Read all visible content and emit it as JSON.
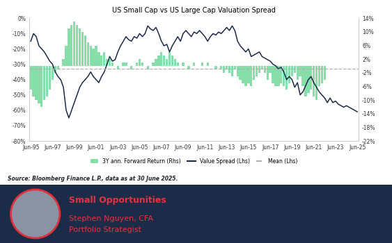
{
  "chart_data": {
    "type": "combo",
    "title": "US Small Cap vs US Large Cap Valuation Spread",
    "categories": [
      "Jun-95",
      null,
      null,
      null,
      null,
      null,
      null,
      null,
      "Jun-97",
      null,
      null,
      null,
      null,
      null,
      null,
      null,
      "Jun-99",
      null,
      null,
      null,
      null,
      null,
      null,
      null,
      "Jun-01",
      null,
      null,
      null,
      null,
      null,
      null,
      null,
      "Jun-03",
      null,
      null,
      null,
      null,
      null,
      null,
      null,
      "Jun-05",
      null,
      null,
      null,
      null,
      null,
      null,
      null,
      "Jun-07",
      null,
      null,
      null,
      null,
      null,
      null,
      null,
      "Jun-09",
      null,
      null,
      null,
      null,
      null,
      null,
      null,
      "Jun-11",
      null,
      null,
      null,
      null,
      null,
      null,
      null,
      "Jun-13",
      null,
      null,
      null,
      null,
      null,
      null,
      null,
      "Jun-15",
      null,
      null,
      null,
      null,
      null,
      null,
      null,
      "Jun-17",
      null,
      null,
      null,
      null,
      null,
      null,
      null,
      "Jun-19",
      null,
      null,
      null,
      null,
      null,
      null,
      null,
      "Jun-21",
      null,
      null,
      null,
      null,
      null,
      null,
      null,
      "Jun-23",
      null,
      null,
      null,
      null,
      null,
      null,
      null,
      "Jun-25"
    ],
    "series": [
      {
        "name": "3Y ann. Forward Return (Rhs)",
        "type": "bar",
        "axis": "y2",
        "color": "#86dfa9",
        "values": [
          -7,
          -9,
          -10,
          -11,
          -12,
          -10,
          -9,
          -7,
          -4,
          -2,
          -1,
          0,
          2,
          6,
          11,
          12,
          13,
          12,
          11,
          10,
          9,
          7,
          6,
          5,
          6,
          4,
          3,
          4,
          2,
          2,
          1,
          0,
          -1,
          0,
          1,
          1,
          0,
          -1,
          0,
          1,
          2,
          1,
          0,
          -1,
          0,
          1,
          2,
          3,
          4,
          3,
          2,
          4,
          3,
          2,
          1,
          0,
          1,
          0,
          -1,
          0,
          1,
          0,
          0,
          1,
          0,
          1,
          0,
          0,
          -1,
          0,
          -1,
          -2,
          -1,
          -2,
          -3,
          -1,
          -3,
          -4,
          -5,
          -6,
          -5,
          -6,
          -4,
          -3,
          -2,
          -1,
          -2,
          -4,
          -2,
          -5,
          -6,
          -6,
          -5,
          -6,
          -7,
          -5,
          -3,
          -2,
          -4,
          -3,
          -6,
          -9,
          -8,
          -7,
          -9,
          -10,
          -6,
          -5,
          -4,
          null,
          null,
          null,
          null,
          null,
          null,
          null,
          null,
          null,
          null,
          null,
          null
        ]
      },
      {
        "name": "Value Spread (Lhs)",
        "type": "line",
        "axis": "y",
        "color": "#1b2a4a",
        "line_style": "solid",
        "values": [
          -15,
          -10,
          -12,
          -18,
          -20,
          -22,
          -25,
          -28,
          -30,
          -35,
          -38,
          -40,
          -45,
          -60,
          -65,
          -60,
          -55,
          -50,
          -45,
          -42,
          -40,
          -38,
          -35,
          -38,
          -40,
          -42,
          -38,
          -35,
          -30,
          -25,
          -28,
          -27,
          -22,
          -18,
          -15,
          -12,
          -14,
          -15,
          -12,
          -13,
          -10,
          -12,
          -10,
          -5,
          -7,
          -8,
          -6,
          -10,
          -15,
          -18,
          -17,
          -22,
          -18,
          -15,
          -12,
          -15,
          -10,
          -8,
          -10,
          -12,
          -9,
          -10,
          -8,
          -10,
          -12,
          -15,
          -12,
          -10,
          -11,
          -9,
          -10,
          -8,
          -6,
          -8,
          -5,
          -8,
          -15,
          -18,
          -20,
          -22,
          -20,
          -25,
          -24,
          -23,
          -22,
          -25,
          -26,
          -27,
          -28,
          -30,
          -31,
          -33,
          -32,
          -35,
          -40,
          -38,
          -40,
          -45,
          -42,
          -50,
          -48,
          -44,
          -40,
          -38,
          -42,
          -45,
          -48,
          -50,
          -52,
          -55,
          -52,
          -55,
          -54,
          -56,
          -57,
          -58,
          -57,
          -58,
          -59,
          -60,
          -61
        ]
      },
      {
        "name": "Mean (Lhs)",
        "type": "hline",
        "axis": "y",
        "color": "#b0b0b0",
        "line_style": "dashed",
        "value": -33
      }
    ],
    "ylim": [
      -80,
      0
    ],
    "yticks": [
      {
        "value": 0,
        "label": "0%"
      },
      {
        "value": -10,
        "label": "-10%"
      },
      {
        "value": -20,
        "label": "-20%"
      },
      {
        "value": -30,
        "label": "-30%"
      },
      {
        "value": -40,
        "label": "-40%"
      },
      {
        "value": -50,
        "label": "-50%"
      },
      {
        "value": -60,
        "label": "-60%"
      },
      {
        "value": -70,
        "label": "-70%"
      },
      {
        "value": -80,
        "label": "-80%"
      }
    ],
    "y2lim": [
      -22,
      14
    ],
    "y2ticks": [
      {
        "value": 14,
        "label": "14%"
      },
      {
        "value": 10,
        "label": "10%"
      },
      {
        "value": 6,
        "label": "6%"
      },
      {
        "value": 2,
        "label": "2%"
      },
      {
        "value": -2,
        "label": "-2%"
      },
      {
        "value": -6,
        "label": "-6%"
      },
      {
        "value": -10,
        "label": "-10%"
      },
      {
        "value": -14,
        "label": "-14%"
      },
      {
        "value": -18,
        "label": "-18%"
      },
      {
        "value": -22,
        "label": "-22%"
      }
    ],
    "legend": "upper center",
    "grid": false
  },
  "source": "Source: Bloomberg Finance L.P., data as at 30 June 2025.",
  "banner": {
    "title": "Small Opportunities",
    "name": "Stephen Nguyen, CFA",
    "role": "Portfolio Strategist"
  }
}
